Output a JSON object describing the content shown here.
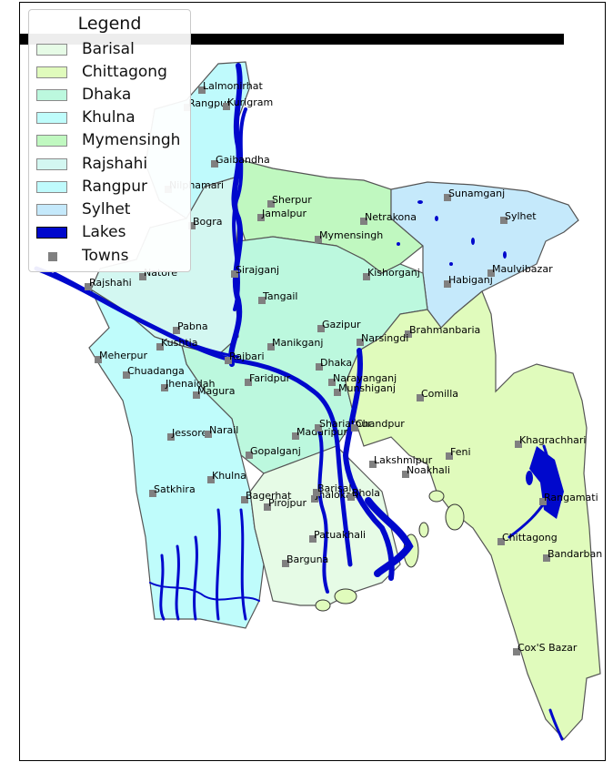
{
  "legend": {
    "title": "Legend",
    "items": [
      {
        "label": "Barisal",
        "color": "#e6fbe6"
      },
      {
        "label": "Chittagong",
        "color": "#e0fbbc"
      },
      {
        "label": "Dhaka",
        "color": "#bcf8de"
      },
      {
        "label": "Khulna",
        "color": "#bffcfb"
      },
      {
        "label": "Mymensingh",
        "color": "#c0f8c0"
      },
      {
        "label": "Rajshahi",
        "color": "#d3f7f1"
      },
      {
        "label": "Rangpur",
        "color": "#bffafc"
      },
      {
        "label": "Sylhet",
        "color": "#c5e9fb"
      },
      {
        "label": "Lakes",
        "color": "#0008cc"
      },
      {
        "label": "Towns",
        "color": "#808080"
      }
    ]
  },
  "towns": [
    "Lalmonirhat",
    "Rangpur",
    "Kurigram",
    "Gaibandha",
    "Nilphamari",
    "Sherpur",
    "Jamalpur",
    "Netrakona",
    "Sunamganj",
    "Sylhet",
    "Bogra",
    "Mymensingh",
    "Natore",
    "Rajshahi",
    "Sirajganj",
    "Kishorganj",
    "Habiganj",
    "Maulvibazar",
    "Tangail",
    "Pabna",
    "Gazipur",
    "Brahmanbaria",
    "Kushtia",
    "Manikganj",
    "Narsingdi",
    "Meherpur",
    "Rajbari",
    "Dhaka",
    "Chuadanga",
    "Faridpur",
    "Narayanganj",
    "Jhenaidah",
    "Magura",
    "Munshiganj",
    "Comilla",
    "Jessore",
    "Narail",
    "Madaripur",
    "Shariatpur",
    "Chandpur",
    "Gopalganj",
    "Feni",
    "Khagrachhari",
    "Lakshmipur",
    "Noakhali",
    "Khulna",
    "Satkhira",
    "Bagerhat",
    "Pirojpur",
    "Jhalokati",
    "Barisal",
    "Bhola",
    "Rangamati",
    "Patuakhali",
    "Chittagong",
    "Barguna",
    "Bandarban",
    "Cox'S Bazar"
  ]
}
